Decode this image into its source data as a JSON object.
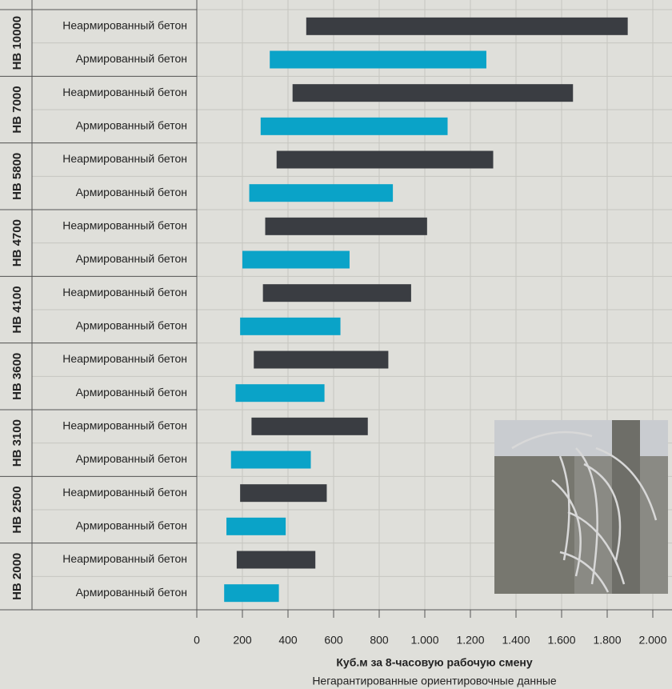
{
  "chart_data": {
    "type": "floating-bar",
    "orientation": "horizontal",
    "categories": [
      "HB 10000",
      "HB 7000",
      "HB 5800",
      "HB 4700",
      "HB 4100",
      "HB 3600",
      "HB 3100",
      "HB 2500",
      "HB 2000"
    ],
    "series": [
      {
        "name": "Неармированный бетон",
        "color": "#3a3d42",
        "values": [
          [
            480,
            1890
          ],
          [
            420,
            1650
          ],
          [
            350,
            1300
          ],
          [
            300,
            1010
          ],
          [
            290,
            940
          ],
          [
            250,
            840
          ],
          [
            240,
            750
          ],
          [
            190,
            570
          ],
          [
            175,
            520
          ]
        ]
      },
      {
        "name": "Армированный бетон",
        "color": "#0aa3c8",
        "values": [
          [
            320,
            1270
          ],
          [
            280,
            1100
          ],
          [
            230,
            860
          ],
          [
            200,
            670
          ],
          [
            190,
            630
          ],
          [
            170,
            560
          ],
          [
            150,
            500
          ],
          [
            130,
            390
          ],
          [
            120,
            360
          ]
        ]
      }
    ],
    "xlim": [
      0,
      2000
    ],
    "xticks": [
      0,
      200,
      400,
      600,
      800,
      {
        "value": 1000,
        "label": "1.000"
      },
      {
        "value": 1200,
        "label": "1.200"
      },
      {
        "value": 1400,
        "label": "1.400"
      },
      {
        "value": 1600,
        "label": "1.600"
      },
      {
        "value": 1800,
        "label": "1.800"
      },
      {
        "value": 2000,
        "label": "2.000"
      }
    ],
    "xlabel": "Куб.м за 8-часовую рабочую смену",
    "note": "Негарантированные ориентировочные данные",
    "grid": true
  }
}
